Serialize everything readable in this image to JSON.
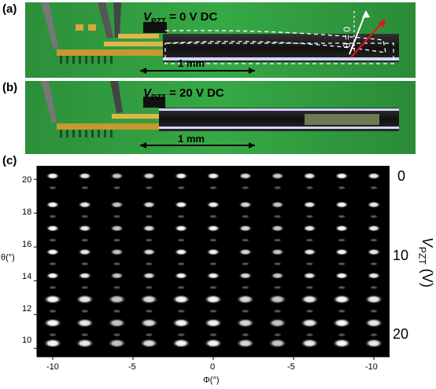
{
  "panels": {
    "a": {
      "label": "(a)",
      "v_symbol": "V",
      "v_sub": "PZT",
      "v_text": " = 0 V DC",
      "scale": "1 mm",
      "theta_text": "θ = 0"
    },
    "b": {
      "label": "(b)",
      "v_symbol": "V",
      "v_sub": "PZT",
      "v_text": " = 20 V DC",
      "scale": "1 mm"
    },
    "c": {
      "label": "(c)",
      "y_axis_label": "θ(°)",
      "x_axis_label": "Φ(°)",
      "y_ticks": [
        "20",
        "18",
        "16",
        "14",
        "12",
        "10"
      ],
      "x_ticks": [
        "-10",
        "-5",
        "0",
        "-5",
        "-10"
      ],
      "right_ticks": [
        "0",
        "10",
        "20"
      ],
      "right_title_symbol": "V",
      "right_title_sub": "PZT",
      "right_title_unit": " (V)"
    }
  },
  "colors": {
    "background_green": "#2f9a3b",
    "gold": "#d9a73a",
    "dark": "#1b1b1b",
    "red_arrow": "#e01818"
  },
  "chart_data": {
    "type": "heatmap",
    "description_axes": {
      "x": "Φ(°)",
      "y": "θ(°)"
    },
    "x_ticks": [
      -10,
      -5,
      0,
      -5,
      -10
    ],
    "y_range": [
      9.5,
      20.8
    ],
    "y_ticks": [
      10,
      12,
      14,
      16,
      18,
      20
    ],
    "spot_columns": 11,
    "spot_rows": [
      20.2,
      19.5,
      18.5,
      17.8,
      17.1,
      16.4,
      15.7,
      15.0,
      14.3,
      13.6,
      12.9,
      12.2,
      11.5,
      10.8,
      10.3
    ],
    "right_axis": {
      "ticks": [
        0,
        10,
        20
      ]
    }
  }
}
